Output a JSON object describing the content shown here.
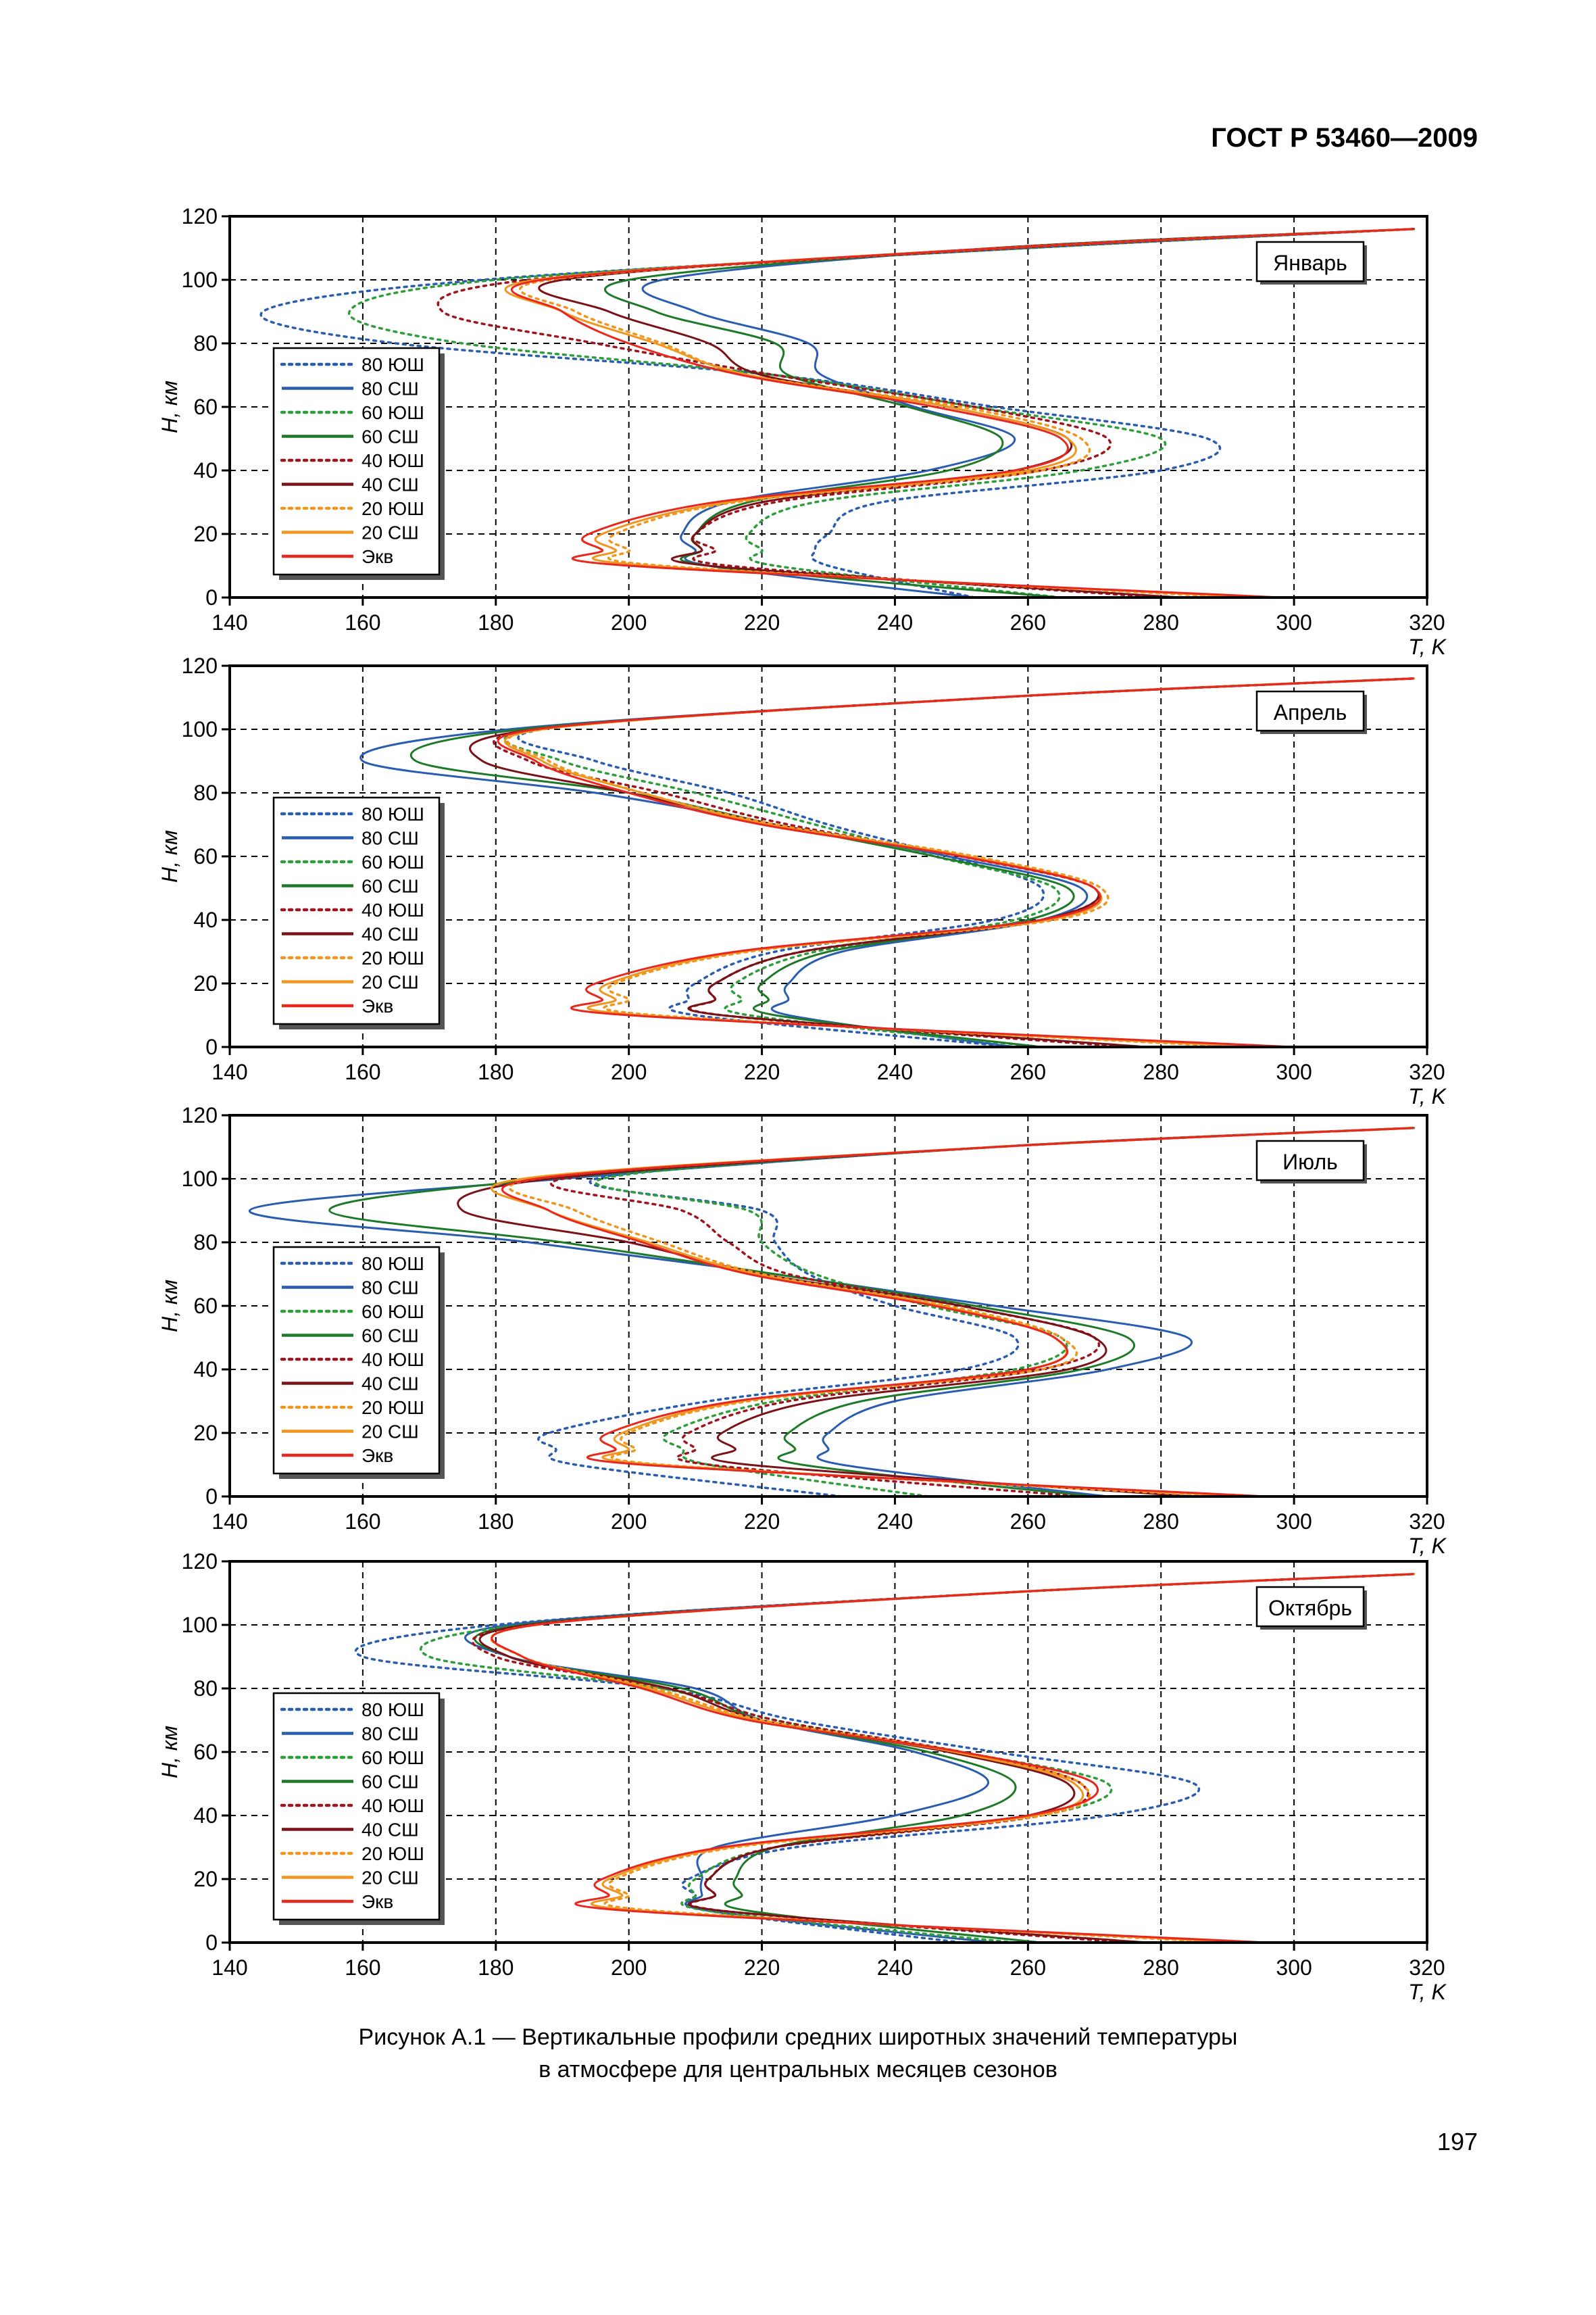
{
  "header": {
    "standard": "ГОСТ Р 53460—2009"
  },
  "caption": {
    "line1": "Рисунок А.1 — Вертикальные профили средних широтных значений температуры",
    "line2": "в атмосфере для центральных месяцев сезонов"
  },
  "page_number": "197",
  "legend_entries": [
    {
      "name": "80 ЮШ",
      "color": "#2a5db0",
      "dotted": true
    },
    {
      "name": "80 СШ",
      "color": "#2a5db0",
      "dotted": false
    },
    {
      "name": "60 ЮШ",
      "color": "#2e9e3a",
      "dotted": true
    },
    {
      "name": "60 СШ",
      "color": "#1e7a28",
      "dotted": false
    },
    {
      "name": "40 ЮШ",
      "color": "#a0141e",
      "dotted": true
    },
    {
      "name": "40 СШ",
      "color": "#7a1218",
      "dotted": false
    },
    {
      "name": "20 ЮШ",
      "color": "#f0961e",
      "dotted": true
    },
    {
      "name": "20 СШ",
      "color": "#f0961e",
      "dotted": false
    },
    {
      "name": "Экв",
      "color": "#e8281e",
      "dotted": false
    }
  ],
  "chart_data": [
    {
      "type": "line",
      "title": "Январь",
      "xlabel": "T, K",
      "ylabel": "H, км",
      "xlim": [
        140,
        320
      ],
      "ylim": [
        0,
        120
      ],
      "xticks": [
        140,
        160,
        180,
        200,
        220,
        240,
        260,
        280,
        300,
        320
      ],
      "yticks": [
        0,
        20,
        40,
        60,
        80,
        100,
        120
      ],
      "grid": true,
      "legend": "left",
      "y": [
        0,
        10,
        15,
        20,
        30,
        40,
        50,
        60,
        70,
        80,
        90,
        100,
        110,
        116
      ],
      "series": [
        {
          "name": "80 ЮШ",
          "values": [
            252,
            230,
            228,
            230,
            238,
            280,
            287,
            255,
            222,
            165,
            145,
            178,
            260,
            318
          ]
        },
        {
          "name": "80 СШ",
          "values": [
            252,
            212,
            210,
            208,
            215,
            245,
            258,
            243,
            229,
            227,
            210,
            205,
            255,
            318
          ]
        },
        {
          "name": "60 ЮШ",
          "values": [
            265,
            222,
            220,
            218,
            228,
            268,
            280,
            252,
            222,
            175,
            158,
            180,
            260,
            318
          ]
        },
        {
          "name": "60 СШ",
          "values": [
            265,
            212,
            211,
            210,
            218,
            248,
            256,
            242,
            224,
            222,
            204,
            200,
            255,
            318
          ]
        },
        {
          "name": "40 ЮШ",
          "values": [
            280,
            215,
            213,
            210,
            222,
            262,
            272,
            252,
            222,
            195,
            172,
            185,
            258,
            318
          ]
        },
        {
          "name": "40 СШ",
          "values": [
            283,
            212,
            211,
            210,
            220,
            258,
            266,
            248,
            220,
            212,
            197,
            190,
            255,
            318
          ]
        },
        {
          "name": "20 ЮШ",
          "values": [
            292,
            205,
            200,
            198,
            216,
            262,
            268,
            250,
            218,
            205,
            192,
            188,
            256,
            318
          ]
        },
        {
          "name": "20 СШ",
          "values": [
            295,
            203,
            198,
            196,
            215,
            260,
            266,
            248,
            218,
            204,
            190,
            186,
            256,
            318
          ]
        },
        {
          "name": "Экв",
          "values": [
            298,
            200,
            196,
            194,
            213,
            258,
            265,
            246,
            217,
            200,
            190,
            187,
            256,
            318
          ]
        }
      ]
    },
    {
      "type": "line",
      "title": "Апрель",
      "xlabel": "T, K",
      "ylabel": "H, км",
      "xlim": [
        140,
        320
      ],
      "ylim": [
        0,
        120
      ],
      "xticks": [
        140,
        160,
        180,
        200,
        220,
        240,
        260,
        280,
        300,
        320
      ],
      "yticks": [
        0,
        20,
        40,
        60,
        80,
        100,
        120
      ],
      "grid": true,
      "legend": "left",
      "y": [
        0,
        10,
        15,
        20,
        30,
        40,
        50,
        60,
        70,
        80,
        90,
        100,
        110,
        116
      ],
      "series": [
        {
          "name": "80 ЮШ",
          "values": [
            258,
            210,
            209,
            210,
            222,
            255,
            262,
            248,
            230,
            215,
            195,
            187,
            255,
            318
          ]
        },
        {
          "name": "80 СШ",
          "values": [
            258,
            224,
            224,
            224,
            232,
            262,
            268,
            248,
            222,
            195,
            160,
            182,
            255,
            318
          ]
        },
        {
          "name": "60 ЮШ",
          "values": [
            262,
            218,
            217,
            216,
            228,
            258,
            264,
            246,
            228,
            210,
            190,
            186,
            255,
            318
          ]
        },
        {
          "name": "60 СШ",
          "values": [
            262,
            222,
            221,
            220,
            230,
            260,
            266,
            246,
            222,
            200,
            168,
            184,
            255,
            318
          ]
        },
        {
          "name": "40 ЮШ",
          "values": [
            275,
            214,
            213,
            213,
            226,
            262,
            270,
            250,
            224,
            205,
            185,
            186,
            255,
            318
          ]
        },
        {
          "name": "40 СШ",
          "values": [
            278,
            214,
            213,
            213,
            226,
            262,
            270,
            250,
            222,
            200,
            178,
            186,
            255,
            318
          ]
        },
        {
          "name": "20 ЮШ",
          "values": [
            292,
            204,
            200,
            198,
            218,
            264,
            271,
            252,
            222,
            202,
            188,
            187,
            255,
            318
          ]
        },
        {
          "name": "20 СШ",
          "values": [
            295,
            202,
            198,
            197,
            217,
            263,
            270,
            251,
            221,
            202,
            187,
            187,
            255,
            318
          ]
        },
        {
          "name": "Экв",
          "values": [
            300,
            200,
            196,
            195,
            216,
            262,
            270,
            250,
            220,
            200,
            186,
            186,
            255,
            318
          ]
        }
      ]
    },
    {
      "type": "line",
      "title": "Июль",
      "xlabel": "T, K",
      "ylabel": "H, км",
      "xlim": [
        140,
        320
      ],
      "ylim": [
        0,
        120
      ],
      "xticks": [
        140,
        160,
        180,
        200,
        220,
        240,
        260,
        280,
        300,
        320
      ],
      "yticks": [
        0,
        20,
        40,
        60,
        80,
        100,
        120
      ],
      "grid": true,
      "legend": "left",
      "y": [
        0,
        10,
        15,
        20,
        30,
        40,
        50,
        60,
        70,
        80,
        90,
        100,
        110,
        116
      ],
      "series": [
        {
          "name": "80 ЮШ",
          "values": [
            232,
            192,
            189,
            188,
            212,
            250,
            258,
            240,
            227,
            222,
            220,
            195,
            255,
            318
          ]
        },
        {
          "name": "80 СШ",
          "values": [
            272,
            232,
            230,
            230,
            240,
            272,
            284,
            255,
            222,
            185,
            143,
            190,
            255,
            318
          ]
        },
        {
          "name": "60 ЮШ",
          "values": [
            245,
            212,
            208,
            206,
            222,
            258,
            265,
            245,
            228,
            220,
            218,
            196,
            255,
            318
          ]
        },
        {
          "name": "60 СШ",
          "values": [
            270,
            226,
            225,
            224,
            235,
            268,
            275,
            252,
            222,
            190,
            155,
            188,
            255,
            318
          ]
        },
        {
          "name": "40 ЮШ",
          "values": [
            268,
            212,
            210,
            209,
            224,
            262,
            270,
            250,
            224,
            215,
            208,
            190,
            255,
            318
          ]
        },
        {
          "name": "40 СШ",
          "values": [
            285,
            218,
            216,
            214,
            228,
            266,
            270,
            250,
            220,
            200,
            175,
            188,
            255,
            318
          ]
        },
        {
          "name": "20 ЮШ",
          "values": [
            290,
            205,
            201,
            200,
            218,
            262,
            265,
            248,
            220,
            205,
            192,
            186,
            255,
            318
          ]
        },
        {
          "name": "20 СШ",
          "values": [
            294,
            204,
            200,
            199,
            217,
            260,
            264,
            247,
            219,
            203,
            188,
            184,
            255,
            318
          ]
        },
        {
          "name": "Экв",
          "values": [
            296,
            202,
            198,
            197,
            216,
            260,
            264,
            246,
            218,
            202,
            188,
            186,
            255,
            318
          ]
        }
      ]
    },
    {
      "type": "line",
      "title": "Октябрь",
      "xlabel": "T, K",
      "ylabel": "H, км",
      "xlim": [
        140,
        320
      ],
      "ylim": [
        0,
        120
      ],
      "xticks": [
        140,
        160,
        180,
        200,
        220,
        240,
        260,
        280,
        300,
        320
      ],
      "yticks": [
        0,
        20,
        40,
        60,
        80,
        100,
        120
      ],
      "grid": true,
      "legend": "left",
      "y": [
        0,
        10,
        15,
        20,
        30,
        40,
        50,
        60,
        70,
        80,
        90,
        100,
        110,
        116
      ],
      "series": [
        {
          "name": "80 ЮШ",
          "values": [
            250,
            212,
            210,
            209,
            225,
            272,
            285,
            255,
            225,
            205,
            160,
            180,
            255,
            318
          ]
        },
        {
          "name": "80 СШ",
          "values": [
            255,
            212,
            211,
            211,
            213,
            240,
            254,
            243,
            220,
            210,
            182,
            182,
            255,
            318
          ]
        },
        {
          "name": "60 ЮШ",
          "values": [
            258,
            212,
            210,
            210,
            222,
            262,
            272,
            250,
            222,
            205,
            170,
            184,
            255,
            318
          ]
        },
        {
          "name": "60 СШ",
          "values": [
            262,
            218,
            217,
            216,
            222,
            250,
            258,
            245,
            220,
            208,
            182,
            184,
            255,
            318
          ]
        },
        {
          "name": "40 ЮШ",
          "values": [
            275,
            214,
            213,
            212,
            222,
            262,
            268,
            250,
            222,
            206,
            180,
            185,
            255,
            318
          ]
        },
        {
          "name": "40 СШ",
          "values": [
            278,
            214,
            213,
            212,
            222,
            260,
            266,
            248,
            220,
            206,
            182,
            185,
            255,
            318
          ]
        },
        {
          "name": "20 ЮШ",
          "values": [
            290,
            204,
            200,
            198,
            216,
            262,
            268,
            250,
            220,
            204,
            184,
            186,
            255,
            318
          ]
        },
        {
          "name": "20 СШ",
          "values": [
            293,
            202,
            199,
            197,
            215,
            261,
            267,
            249,
            219,
            203,
            184,
            186,
            255,
            318
          ]
        },
        {
          "name": "Экв",
          "values": [
            296,
            200,
            197,
            196,
            214,
            260,
            270,
            250,
            218,
            202,
            184,
            186,
            255,
            318
          ]
        }
      ]
    }
  ]
}
